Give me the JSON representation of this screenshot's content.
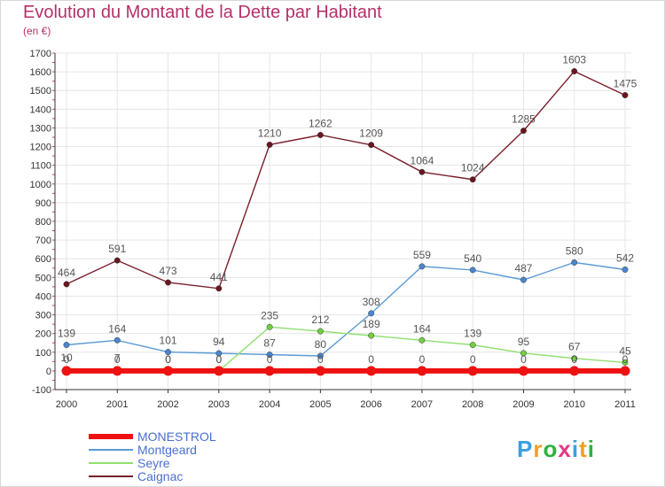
{
  "header": {
    "title": "Evolution du Montant de la Dette par Habitant",
    "unit": "(en €)"
  },
  "logo": {
    "letters": [
      "P",
      "r",
      "o",
      "x",
      "i",
      "t",
      "i"
    ],
    "colors": [
      "#3aa0e0",
      "#f0a020",
      "#30b040",
      "#e03a80",
      "#3aa0e0",
      "#f0a020",
      "#30b040"
    ]
  },
  "chart_data": {
    "type": "line",
    "x": [
      "2000",
      "2001",
      "2002",
      "2003",
      "2004",
      "2005",
      "2006",
      "2007",
      "2008",
      "2009",
      "2010",
      "2011"
    ],
    "ylim": [
      -100,
      1700
    ],
    "yticks": [
      -100,
      0,
      100,
      200,
      300,
      400,
      500,
      600,
      700,
      800,
      900,
      1000,
      1100,
      1200,
      1300,
      1400,
      1500,
      1600,
      1700
    ],
    "grid": true,
    "legend_position": "bottom-left",
    "series": [
      {
        "name": "Caignac",
        "color": "#7a1f2b",
        "marker": "#6b1520",
        "values": [
          464,
          591,
          473,
          441,
          1210,
          1262,
          1209,
          1064,
          1024,
          1285,
          1603,
          1475
        ],
        "labels": [
          "464",
          "591",
          "473",
          "441",
          "1210",
          "1262",
          "1209",
          "1064",
          "1024",
          "1285",
          "1603",
          "1475"
        ]
      },
      {
        "name": "Montgeard",
        "color": "#5b9bd5",
        "marker": "#4a86d0",
        "values": [
          139,
          164,
          101,
          94,
          87,
          80,
          308,
          559,
          540,
          487,
          580,
          542
        ],
        "labels": [
          "139",
          "164",
          "101",
          "94",
          "87",
          "80",
          "308",
          "559",
          "540",
          "487",
          "580",
          "542"
        ]
      },
      {
        "name": "Seyre",
        "color": "#90e070",
        "marker": "#70d040",
        "values": [
          10,
          7,
          0,
          0,
          235,
          212,
          189,
          164,
          139,
          95,
          67,
          45
        ],
        "labels": [
          "10",
          "7",
          "0",
          "0",
          "235",
          "212",
          "189",
          "164",
          "139",
          "95",
          "67",
          "45"
        ]
      },
      {
        "name": "MONESTROL",
        "color": "#ee1111",
        "marker": "#ee1111",
        "values": [
          0,
          0,
          0,
          0,
          0,
          0,
          0,
          0,
          0,
          0,
          0,
          0
        ],
        "labels": [
          "0",
          "0",
          "0",
          "0",
          "0",
          "0",
          "0",
          "0",
          "0",
          "0",
          "0",
          "0"
        ]
      }
    ]
  }
}
